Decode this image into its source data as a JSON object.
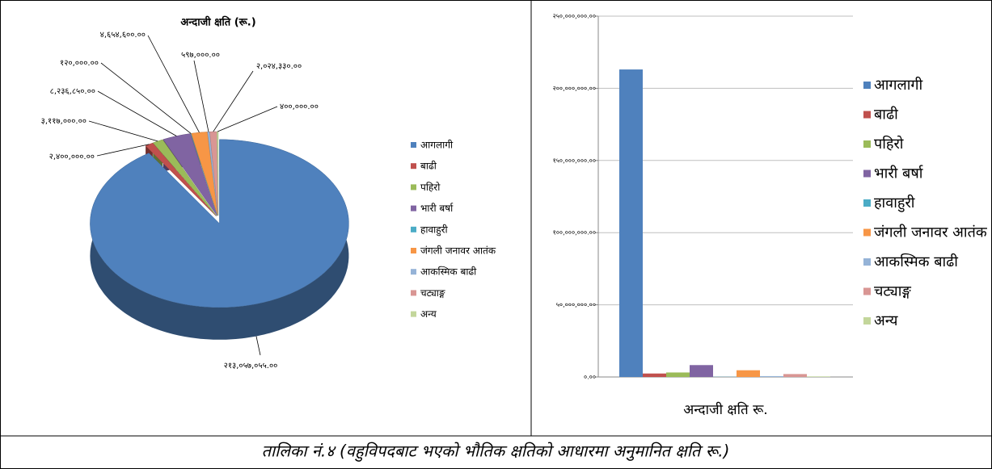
{
  "chart_data": [
    {
      "type": "pie",
      "title": "अन्दाजी क्षति (रू.)",
      "categories": [
        "आगलागी",
        "बाढी",
        "पहिरो",
        "भारी बर्षा",
        "हावाहुरी",
        "जंगली जनावर आतंक",
        "आकस्मिक बाढी",
        "चट्याङ्ग",
        "अन्य"
      ],
      "values": [
        213057055,
        2400000,
        3117000,
        8236850,
        120000,
        4654600,
        597000,
        2024330,
        400000
      ],
      "value_labels": [
        "२१३,०५७,०५५.००",
        "२,४००,०००.००",
        "३,११७,०००.००",
        "८,२३६,८५०.००",
        "१२०,०००.००",
        "४,६५४,६००.००",
        "५९७,०००.००",
        "२,०२४,३३०.००",
        "४००,०००.००"
      ],
      "colors": [
        "#4F81BD",
        "#C0504D",
        "#9BBB59",
        "#8064A2",
        "#4BACC6",
        "#F79646",
        "#95B3D7",
        "#D99694",
        "#C3D69B"
      ],
      "legend": "right"
    },
    {
      "type": "bar",
      "categories": [
        "अन्दाजी क्षति रू."
      ],
      "series": [
        {
          "name": "आगलागी",
          "color": "#4F81BD",
          "values": [
            213057055
          ]
        },
        {
          "name": "बाढी",
          "color": "#C0504D",
          "values": [
            2400000
          ]
        },
        {
          "name": "पहिरो",
          "color": "#9BBB59",
          "values": [
            3117000
          ]
        },
        {
          "name": "भारी बर्षा",
          "color": "#8064A2",
          "values": [
            8236850
          ]
        },
        {
          "name": "हावाहुरी",
          "color": "#4BACC6",
          "values": [
            120000
          ]
        },
        {
          "name": "जंगली जनावर आतंक",
          "color": "#F79646",
          "values": [
            4654600
          ]
        },
        {
          "name": "आकस्मिक बाढी",
          "color": "#95B3D7",
          "values": [
            597000
          ]
        },
        {
          "name": "चट्याङ्ग",
          "color": "#D99694",
          "values": [
            2024330
          ]
        },
        {
          "name": "अन्य",
          "color": "#C3D69B",
          "values": [
            400000
          ]
        }
      ],
      "ylim": [
        0,
        250000000
      ],
      "yticks": [
        {
          "value": 0,
          "label": "०.००"
        },
        {
          "value": 50000000,
          "label": "५०,०००,०००.००"
        },
        {
          "value": 100000000,
          "label": "१००,०००,०००.००"
        },
        {
          "value": 150000000,
          "label": "१५०,०००,०००.००"
        },
        {
          "value": 200000000,
          "label": "२००,०००,०००.००"
        },
        {
          "value": 250000000,
          "label": "२५०,०००,०००.००"
        }
      ],
      "grid": true,
      "legend": "right"
    }
  ],
  "caption": "तालिका नं.४ (वहुविपदबाट भएको भौतिक क्षतिको आधारमा अनुमानित क्षति रू.)"
}
